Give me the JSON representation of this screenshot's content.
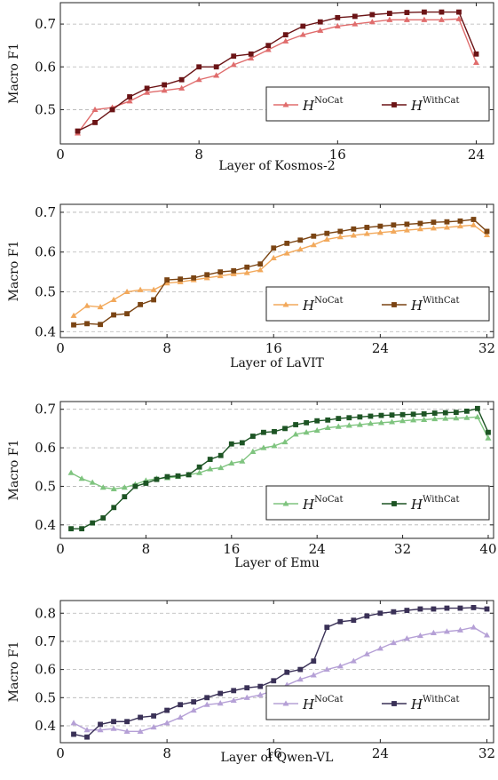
{
  "chart_data": [
    {
      "type": "line",
      "xlabel": "Layer of Kosmos-2",
      "ylabel": "Macro F1",
      "xlim": [
        0,
        25
      ],
      "ylim": [
        0.42,
        0.75
      ],
      "xticks": [
        0,
        8,
        16,
        24
      ],
      "yticks": [
        0.5,
        0.6,
        0.7
      ],
      "ytick_labels": [
        "0.5",
        "0.6",
        "0.7"
      ],
      "grid": "horizontal dashed",
      "legend_position": "bottom-right",
      "x": [
        1,
        2,
        3,
        4,
        5,
        6,
        7,
        8,
        9,
        10,
        11,
        12,
        13,
        14,
        15,
        16,
        17,
        18,
        19,
        20,
        21,
        22,
        23,
        24
      ],
      "series": [
        {
          "name": "H",
          "sup": "NoCat",
          "color": "#e06d6d",
          "marker": "triangle",
          "values": [
            0.445,
            0.5,
            0.505,
            0.52,
            0.54,
            0.545,
            0.55,
            0.57,
            0.58,
            0.605,
            0.62,
            0.64,
            0.66,
            0.675,
            0.685,
            0.695,
            0.7,
            0.705,
            0.71,
            0.71,
            0.71,
            0.71,
            0.712,
            0.61
          ]
        },
        {
          "name": "H",
          "sup": "WithCat",
          "color": "#6b1416",
          "marker": "square",
          "values": [
            0.45,
            0.47,
            0.5,
            0.53,
            0.55,
            0.558,
            0.57,
            0.6,
            0.6,
            0.625,
            0.63,
            0.65,
            0.675,
            0.695,
            0.705,
            0.715,
            0.718,
            0.722,
            0.725,
            0.727,
            0.728,
            0.728,
            0.728,
            0.63
          ]
        }
      ]
    },
    {
      "type": "line",
      "xlabel": "Layer of LaVIT",
      "ylabel": "Macro F1",
      "xlim": [
        0,
        32.5
      ],
      "ylim": [
        0.385,
        0.72
      ],
      "xticks": [
        0,
        8,
        16,
        24,
        32
      ],
      "yticks": [
        0.4,
        0.5,
        0.6,
        0.7
      ],
      "ytick_labels": [
        "0.4",
        "0.5",
        "0.6",
        "0.7"
      ],
      "grid": "horizontal dashed",
      "legend_position": "bottom-right",
      "x": [
        1,
        2,
        3,
        4,
        5,
        6,
        7,
        8,
        9,
        10,
        11,
        12,
        13,
        14,
        15,
        16,
        17,
        18,
        19,
        20,
        21,
        22,
        23,
        24,
        25,
        26,
        27,
        28,
        29,
        30,
        31,
        32
      ],
      "series": [
        {
          "name": "H",
          "sup": "NoCat",
          "color": "#f2a95c",
          "marker": "triangle",
          "values": [
            0.44,
            0.465,
            0.462,
            0.48,
            0.5,
            0.505,
            0.505,
            0.522,
            0.525,
            0.53,
            0.535,
            0.54,
            0.545,
            0.548,
            0.555,
            0.585,
            0.597,
            0.607,
            0.618,
            0.632,
            0.638,
            0.642,
            0.646,
            0.649,
            0.652,
            0.655,
            0.658,
            0.66,
            0.662,
            0.665,
            0.668,
            0.643
          ]
        },
        {
          "name": "H",
          "sup": "WithCat",
          "color": "#7a4413",
          "marker": "square",
          "values": [
            0.417,
            0.42,
            0.418,
            0.442,
            0.445,
            0.468,
            0.48,
            0.53,
            0.532,
            0.535,
            0.543,
            0.55,
            0.553,
            0.562,
            0.57,
            0.61,
            0.622,
            0.63,
            0.64,
            0.647,
            0.652,
            0.658,
            0.662,
            0.665,
            0.668,
            0.67,
            0.672,
            0.675,
            0.676,
            0.678,
            0.682,
            0.652
          ]
        }
      ]
    },
    {
      "type": "line",
      "xlabel": "Layer of Emu",
      "ylabel": "Macro F1",
      "xlim": [
        0,
        40.5
      ],
      "ylim": [
        0.365,
        0.72
      ],
      "xticks": [
        0,
        8,
        16,
        24,
        32,
        40
      ],
      "yticks": [
        0.4,
        0.5,
        0.6,
        0.7
      ],
      "ytick_labels": [
        "0.4",
        "0.5",
        "0.6",
        "0.7"
      ],
      "grid": "horizontal dashed",
      "legend_position": "bottom-right",
      "x": [
        1,
        2,
        3,
        4,
        5,
        6,
        7,
        8,
        9,
        10,
        11,
        12,
        13,
        14,
        15,
        16,
        17,
        18,
        19,
        20,
        21,
        22,
        23,
        24,
        25,
        26,
        27,
        28,
        29,
        30,
        31,
        32,
        33,
        34,
        35,
        36,
        37,
        38,
        39,
        40
      ],
      "series": [
        {
          "name": "H",
          "sup": "NoCat",
          "color": "#7fc47f",
          "marker": "triangle",
          "values": [
            0.535,
            0.52,
            0.51,
            0.497,
            0.493,
            0.497,
            0.505,
            0.515,
            0.52,
            0.522,
            0.525,
            0.53,
            0.535,
            0.545,
            0.548,
            0.56,
            0.565,
            0.59,
            0.6,
            0.605,
            0.615,
            0.635,
            0.64,
            0.645,
            0.652,
            0.655,
            0.658,
            0.66,
            0.663,
            0.665,
            0.667,
            0.67,
            0.672,
            0.673,
            0.675,
            0.676,
            0.677,
            0.678,
            0.68,
            0.625
          ]
        },
        {
          "name": "H",
          "sup": "WithCat",
          "color": "#1d5424",
          "marker": "square",
          "values": [
            0.39,
            0.39,
            0.405,
            0.418,
            0.445,
            0.473,
            0.5,
            0.508,
            0.518,
            0.525,
            0.527,
            0.53,
            0.55,
            0.57,
            0.58,
            0.61,
            0.613,
            0.63,
            0.64,
            0.642,
            0.65,
            0.66,
            0.665,
            0.67,
            0.672,
            0.676,
            0.678,
            0.68,
            0.682,
            0.684,
            0.685,
            0.686,
            0.687,
            0.688,
            0.69,
            0.691,
            0.692,
            0.695,
            0.702,
            0.64
          ]
        }
      ]
    },
    {
      "type": "line",
      "xlabel": "Layer of Qwen-VL",
      "ylabel": "Macro F1",
      "xlim": [
        0,
        32.5
      ],
      "ylim": [
        0.34,
        0.845
      ],
      "xticks": [
        0,
        8,
        16,
        24,
        32
      ],
      "yticks": [
        0.4,
        0.5,
        0.6,
        0.7,
        0.8
      ],
      "ytick_labels": [
        "0.4",
        "0.5",
        "0.6",
        "0.7",
        "0.8"
      ],
      "grid": "horizontal dashed",
      "legend_position": "bottom-right",
      "x": [
        1,
        2,
        3,
        4,
        5,
        6,
        7,
        8,
        9,
        10,
        11,
        12,
        13,
        14,
        15,
        16,
        17,
        18,
        19,
        20,
        21,
        22,
        23,
        24,
        25,
        26,
        27,
        28,
        29,
        30,
        31,
        32
      ],
      "series": [
        {
          "name": "H",
          "sup": "NoCat",
          "color": "#b5a0d6",
          "marker": "triangle",
          "values": [
            0.41,
            0.385,
            0.385,
            0.39,
            0.38,
            0.38,
            0.395,
            0.41,
            0.43,
            0.455,
            0.475,
            0.48,
            0.49,
            0.5,
            0.51,
            0.525,
            0.545,
            0.565,
            0.58,
            0.6,
            0.612,
            0.63,
            0.655,
            0.675,
            0.695,
            0.71,
            0.72,
            0.73,
            0.735,
            0.74,
            0.75,
            0.722
          ]
        },
        {
          "name": "H",
          "sup": "WithCat",
          "color": "#3a3157",
          "marker": "square",
          "values": [
            0.37,
            0.36,
            0.405,
            0.415,
            0.415,
            0.43,
            0.435,
            0.455,
            0.475,
            0.485,
            0.5,
            0.515,
            0.525,
            0.535,
            0.54,
            0.56,
            0.59,
            0.6,
            0.63,
            0.75,
            0.77,
            0.775,
            0.79,
            0.8,
            0.805,
            0.81,
            0.815,
            0.815,
            0.818,
            0.818,
            0.82,
            0.815
          ]
        }
      ]
    }
  ]
}
